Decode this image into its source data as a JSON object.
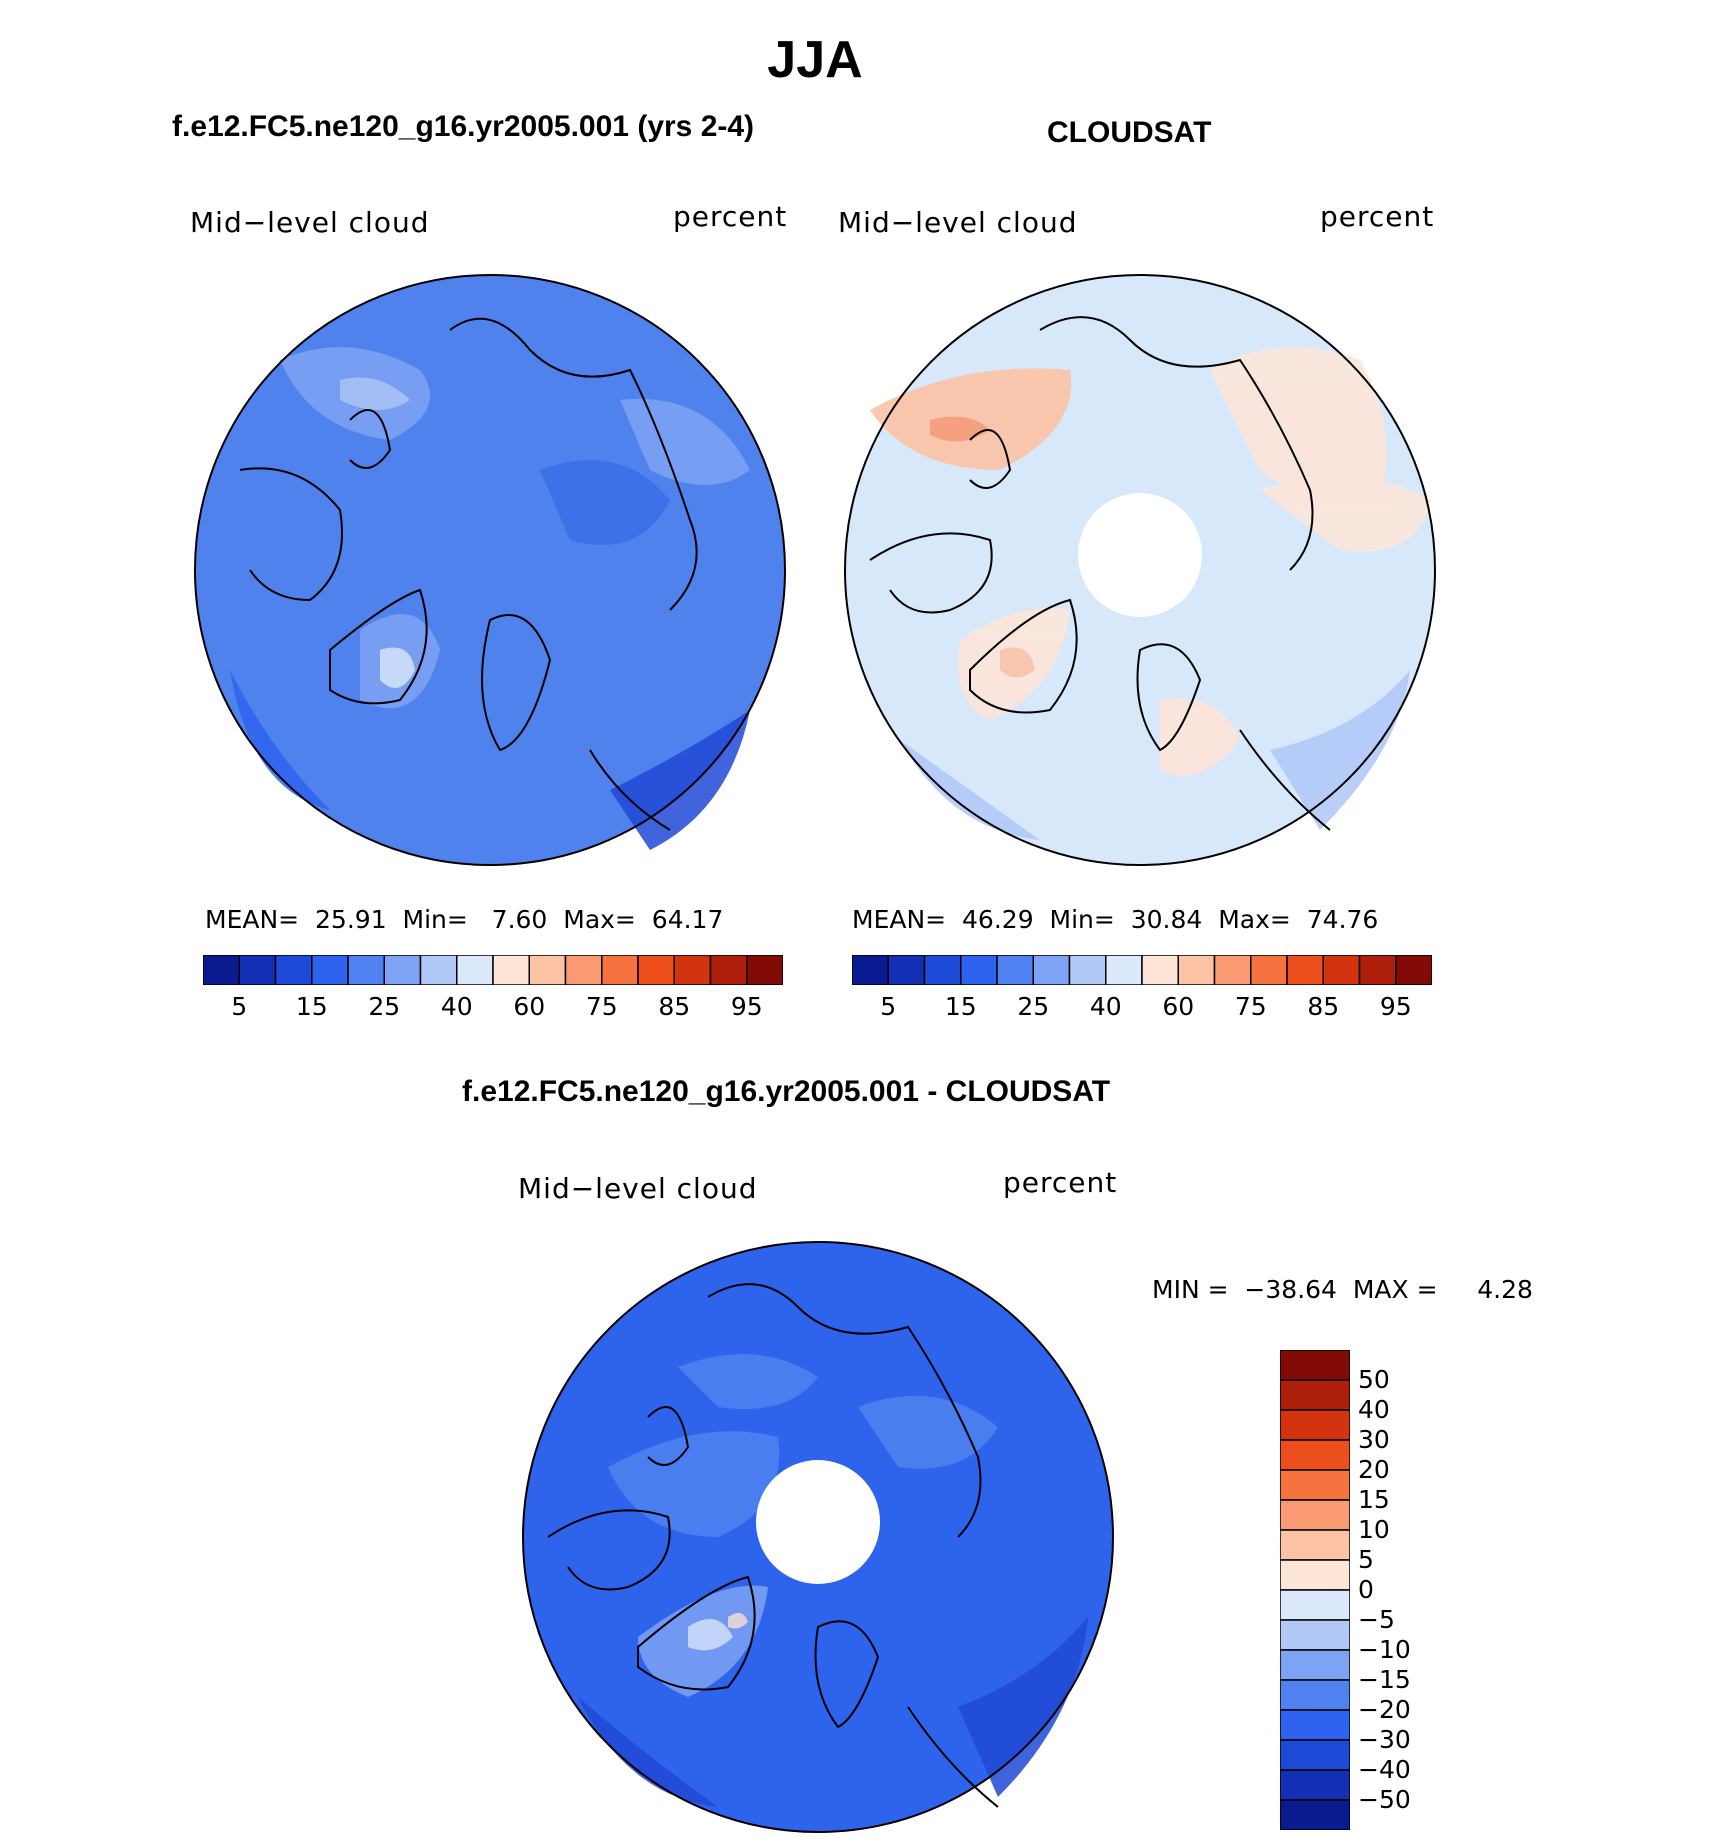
{
  "title": "JJA",
  "panels": [
    {
      "title": "f.e12.FC5.ne120_g16.yr2005.001 (yrs 2-4)",
      "left_label": "Mid−level cloud",
      "right_label": "percent",
      "stats": {
        "mean_label": "MEAN=",
        "mean": "25.91",
        "min_label": "Min=",
        "min": "7.60",
        "max_label": "Max=",
        "max": "64.17"
      },
      "fill_color": "#4f82ec",
      "pole_hole": false
    },
    {
      "title": "CLOUDSAT",
      "left_label": "Mid−level cloud",
      "right_label": "percent",
      "stats": {
        "mean_label": "MEAN=",
        "mean": "46.29",
        "min_label": "Min=",
        "min": "30.84",
        "max_label": "Max=",
        "max": "74.76"
      },
      "fill_color": "#d8e8fb",
      "pole_hole": true
    }
  ],
  "colorbar": {
    "colors": [
      "#0a1a8f",
      "#1330b5",
      "#1e4ad8",
      "#2d63ee",
      "#4f82f0",
      "#7ea3f4",
      "#b2c9f7",
      "#dce9fb",
      "#fde5d8",
      "#fcc3a5",
      "#f99a72",
      "#f5733f",
      "#ec4e1c",
      "#d23410",
      "#ae1f0b",
      "#830b06"
    ],
    "tick_labels": [
      "5",
      "15",
      "25",
      "40",
      "60",
      "75",
      "85",
      "95"
    ]
  },
  "diff_panel": {
    "title": "f.e12.FC5.ne120_g16.yr2005.001 - CLOUDSAT",
    "left_label": "Mid−level cloud",
    "right_label": "percent",
    "stats": "MIN =  −38.64  MAX =     4.28",
    "fill_color": "#2e63ec",
    "colorbar": {
      "colors_top_to_bottom": [
        "#830b06",
        "#ae1f0b",
        "#d23410",
        "#ec4e1c",
        "#f5733f",
        "#f99a72",
        "#fcc3a5",
        "#fde5d8",
        "#dce9fb",
        "#b2c9f7",
        "#7ea3f4",
        "#4f82f0",
        "#2d63ee",
        "#1e4ad8",
        "#1330b5",
        "#0a1a8f"
      ],
      "tick_labels": [
        "50",
        "40",
        "30",
        "20",
        "15",
        "10",
        "5",
        "0",
        "−5",
        "−10",
        "−15",
        "−20",
        "−30",
        "−40",
        "−50"
      ]
    }
  }
}
